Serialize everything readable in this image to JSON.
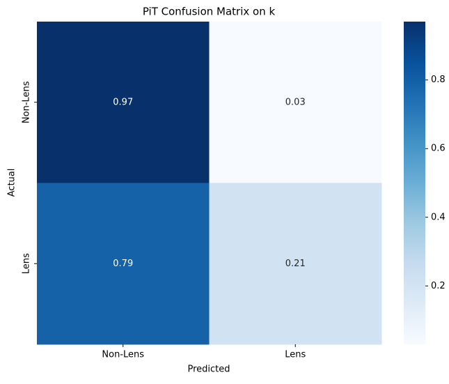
{
  "chart_data": {
    "type": "heatmap",
    "title": "PiT Confusion Matrix on k",
    "xlabel": "Predicted",
    "ylabel": "Actual",
    "x_categories": [
      "Non-Lens",
      "Lens"
    ],
    "y_categories": [
      "Non-Lens",
      "Lens"
    ],
    "values": [
      [
        0.97,
        0.03
      ],
      [
        0.79,
        0.21
      ]
    ],
    "colormap": "Blues",
    "clim": [
      0.03,
      0.97
    ],
    "cticks": [
      0.2,
      0.4,
      0.6,
      0.8
    ]
  }
}
